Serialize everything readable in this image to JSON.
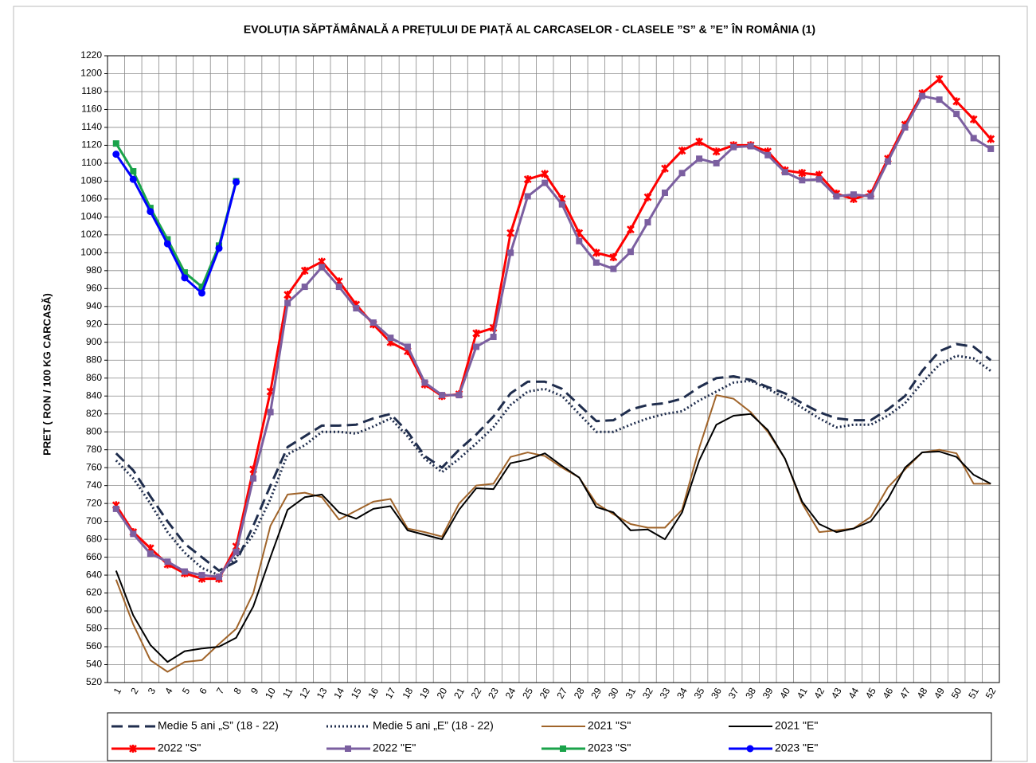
{
  "chart_data": {
    "type": "line",
    "title": "EVOLUȚIA  SĂPTĂMÂNALĂ  A PREȚULUI  DE PIAȚĂ  AL CARCASELOR   - CLASELE  ”S” & ”E”  ÎN ROMÂNIA  (1)",
    "y_label": "PRET ( RON / 100 KG CARCASĂ)",
    "categories": [
      "1",
      "2",
      "3",
      "4",
      "5",
      "6",
      "7",
      "8",
      "9",
      "10",
      "11",
      "12",
      "13",
      "14",
      "15",
      "16",
      "17",
      "18",
      "19",
      "20",
      "21",
      "22",
      "23",
      "24",
      "25",
      "26",
      "27",
      "28",
      "29",
      "30",
      "31",
      "32",
      "33",
      "34",
      "35",
      "36",
      "37",
      "38",
      "39",
      "40",
      "41",
      "42",
      "43",
      "44",
      "45",
      "46",
      "47",
      "48",
      "49",
      "50",
      "51",
      "52"
    ],
    "ylim": [
      520,
      1220
    ],
    "yticks": [
      520,
      540,
      560,
      580,
      600,
      620,
      640,
      660,
      680,
      700,
      720,
      740,
      760,
      780,
      800,
      820,
      840,
      860,
      880,
      900,
      920,
      940,
      960,
      980,
      1000,
      1020,
      1040,
      1060,
      1080,
      1100,
      1120,
      1140,
      1160,
      1180,
      1200,
      1220
    ],
    "grid": true,
    "legend": "bottom",
    "series": [
      {
        "name": "Medie 5 ani „S” (18 - 22)",
        "color": "#1f2d4d",
        "line_style": "dashed",
        "marker": "none",
        "values": [
          776,
          757,
          728,
          700,
          675,
          660,
          645,
          655,
          695,
          740,
          783,
          795,
          807,
          807,
          808,
          815,
          820,
          800,
          773,
          760,
          780,
          797,
          817,
          843,
          856,
          856,
          848,
          830,
          812,
          813,
          825,
          830,
          832,
          837,
          850,
          860,
          862,
          858,
          850,
          843,
          832,
          822,
          815,
          813,
          813,
          825,
          840,
          868,
          890,
          898,
          895,
          880
        ]
      },
      {
        "name": "Medie 5 ani „E” (18 - 22)",
        "color": "#1f2d4d",
        "line_style": "dotted",
        "marker": "none",
        "values": [
          768,
          748,
          720,
          688,
          665,
          648,
          640,
          660,
          685,
          725,
          775,
          785,
          800,
          800,
          798,
          806,
          815,
          795,
          770,
          755,
          770,
          787,
          805,
          830,
          845,
          848,
          840,
          820,
          800,
          800,
          808,
          815,
          820,
          823,
          835,
          845,
          855,
          857,
          848,
          838,
          827,
          815,
          805,
          808,
          808,
          818,
          832,
          855,
          875,
          885,
          882,
          868
        ]
      },
      {
        "name": "2021 \"S\"",
        "color": "#a0642a",
        "line_style": "solid",
        "marker": "none",
        "values": [
          635,
          585,
          545,
          532,
          543,
          545,
          563,
          580,
          620,
          695,
          730,
          732,
          727,
          702,
          712,
          722,
          725,
          692,
          688,
          683,
          720,
          740,
          742,
          772,
          777,
          773,
          760,
          749,
          720,
          708,
          697,
          693,
          693,
          713,
          782,
          841,
          837,
          822,
          800,
          770,
          720,
          688,
          690,
          692,
          705,
          738,
          758,
          777,
          780,
          776,
          742,
          742
        ]
      },
      {
        "name": "2021 \"E\"",
        "color": "#000000",
        "line_style": "solid",
        "marker": "none",
        "values": [
          645,
          595,
          562,
          543,
          555,
          558,
          560,
          570,
          605,
          660,
          713,
          727,
          730,
          710,
          703,
          714,
          717,
          690,
          685,
          680,
          713,
          737,
          736,
          765,
          769,
          776,
          762,
          749,
          716,
          710,
          690,
          691,
          680,
          710,
          768,
          808,
          818,
          820,
          802,
          770,
          722,
          697,
          688,
          692,
          700,
          725,
          760,
          777,
          778,
          772,
          752,
          742
        ]
      },
      {
        "name": "2022 \"S\"",
        "color": "#ff0000",
        "line_style": "solid",
        "marker": "star",
        "values": [
          718,
          688,
          670,
          652,
          642,
          636,
          636,
          672,
          758,
          845,
          953,
          980,
          990,
          968,
          942,
          920,
          900,
          890,
          853,
          840,
          842,
          910,
          916,
          1022,
          1082,
          1088,
          1060,
          1022,
          1000,
          995,
          1026,
          1062,
          1094,
          1114,
          1124,
          1113,
          1120,
          1120,
          1113,
          1092,
          1089,
          1087,
          1066,
          1060,
          1066,
          1105,
          1143,
          1178,
          1194,
          1169,
          1149,
          1127
        ]
      },
      {
        "name": "2022 \"E\"",
        "color": "#7b5fa0",
        "line_style": "solid",
        "marker": "square",
        "values": [
          714,
          686,
          664,
          655,
          644,
          640,
          638,
          666,
          748,
          822,
          944,
          962,
          984,
          962,
          938,
          922,
          905,
          895,
          855,
          841,
          841,
          895,
          906,
          1000,
          1063,
          1078,
          1054,
          1013,
          989,
          982,
          1001,
          1034,
          1067,
          1089,
          1105,
          1100,
          1118,
          1119,
          1109,
          1090,
          1081,
          1082,
          1063,
          1065,
          1063,
          1102,
          1140,
          1175,
          1171,
          1155,
          1128,
          1116
        ]
      },
      {
        "name": "2023 \"S\"",
        "color": "#1aa34a",
        "line_style": "solid",
        "marker": "square",
        "values": [
          1122,
          1091,
          1050,
          1015,
          978,
          962,
          1008,
          1080,
          null,
          null,
          null,
          null,
          null,
          null,
          null,
          null,
          null,
          null,
          null,
          null,
          null,
          null,
          null,
          null,
          null,
          null,
          null,
          null,
          null,
          null,
          null,
          null,
          null,
          null,
          null,
          null,
          null,
          null,
          null,
          null,
          null,
          null,
          null,
          null,
          null,
          null,
          null,
          null,
          null,
          null,
          null,
          null
        ]
      },
      {
        "name": "2023 \"E\"",
        "color": "#0000ff",
        "line_style": "solid",
        "marker": "circle",
        "values": [
          1110,
          1082,
          1046,
          1010,
          972,
          955,
          1005,
          1079,
          null,
          null,
          null,
          null,
          null,
          null,
          null,
          null,
          null,
          null,
          null,
          null,
          null,
          null,
          null,
          null,
          null,
          null,
          null,
          null,
          null,
          null,
          null,
          null,
          null,
          null,
          null,
          null,
          null,
          null,
          null,
          null,
          null,
          null,
          null,
          null,
          null,
          null,
          null,
          null,
          null,
          null,
          null,
          null
        ]
      }
    ]
  }
}
